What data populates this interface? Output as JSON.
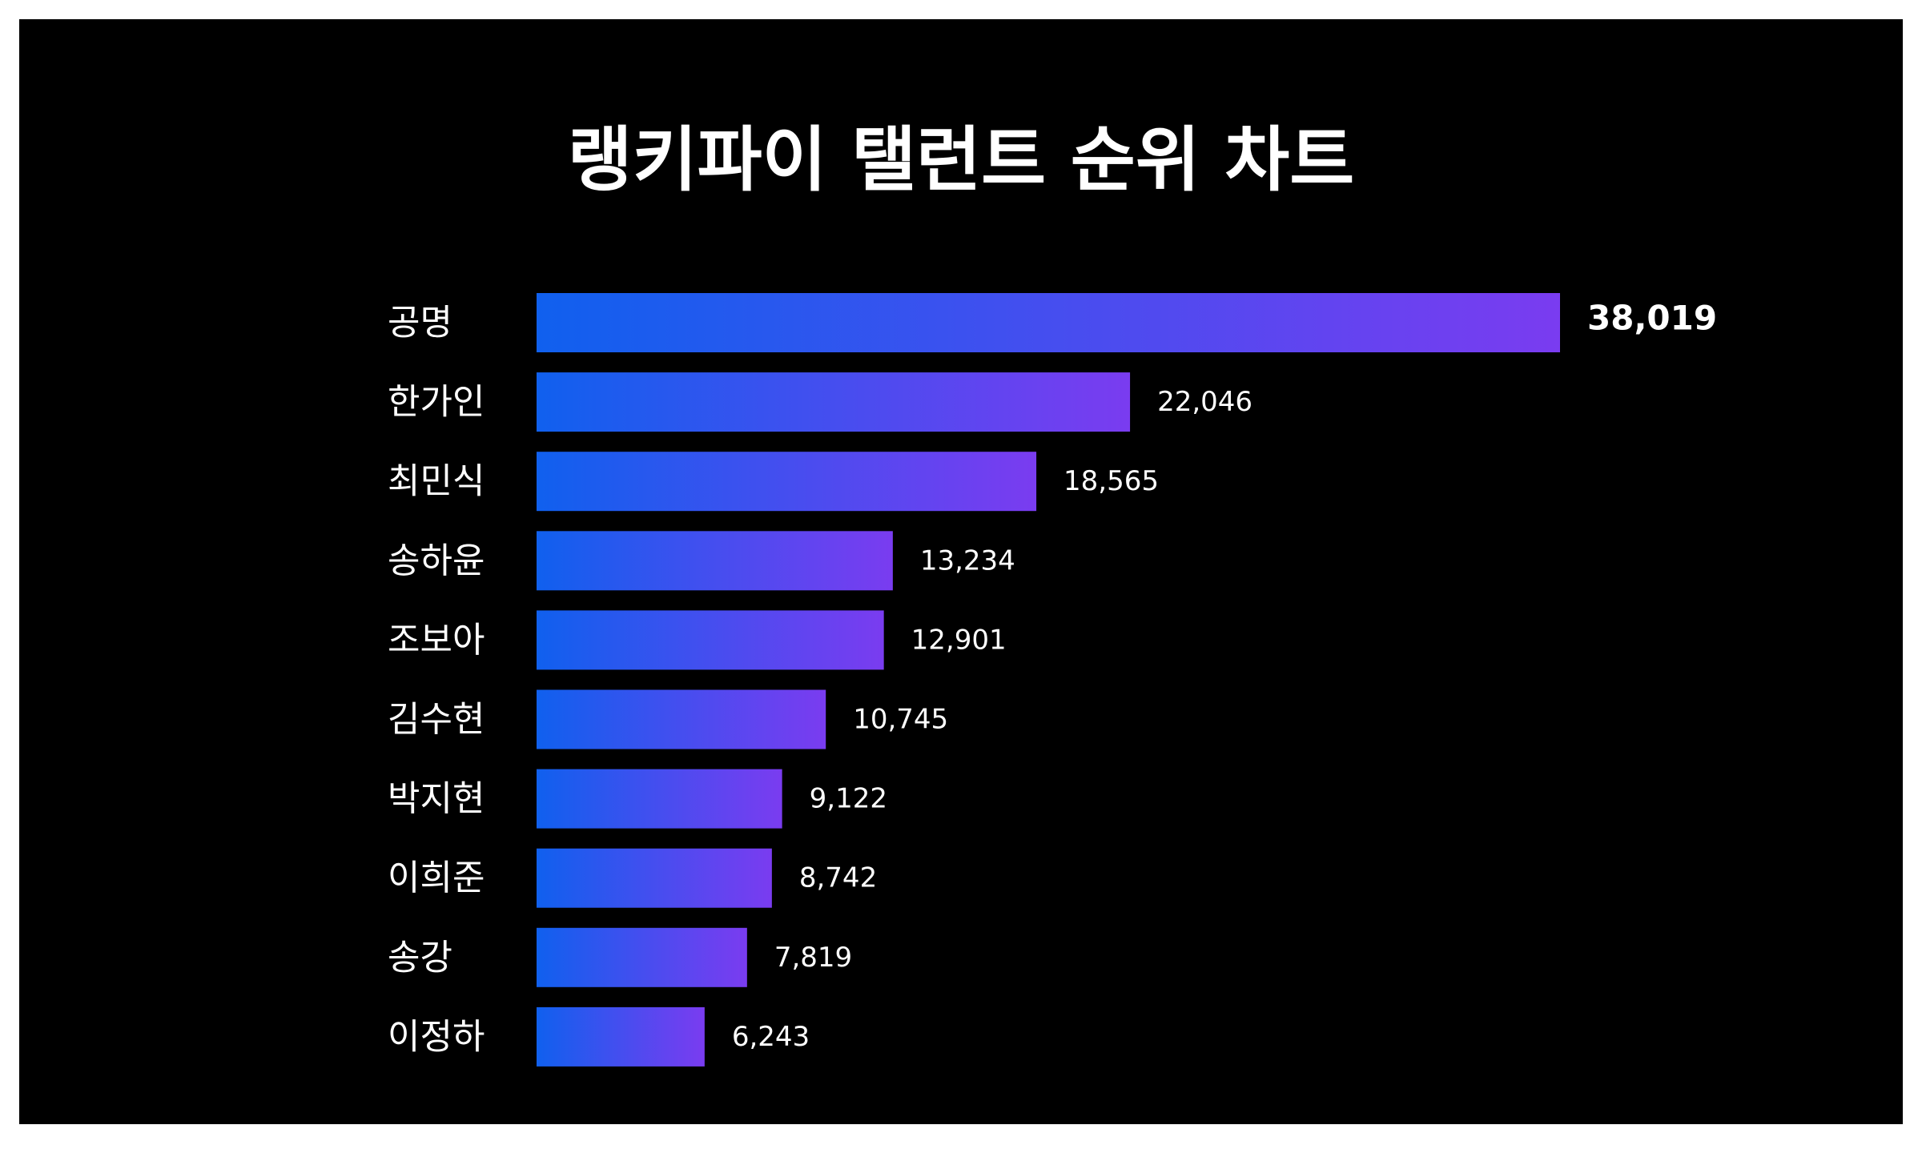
{
  "chart_data": {
    "type": "bar",
    "orientation": "horizontal",
    "title": "랭키파이 탤런트 순위 차트",
    "categories": [
      "공명",
      "한가인",
      "최민식",
      "송하윤",
      "조보아",
      "김수현",
      "박지현",
      "이희준",
      "송강",
      "이정하"
    ],
    "values": [
      38019,
      22046,
      18565,
      13234,
      12901,
      10745,
      9122,
      8742,
      7819,
      6243
    ],
    "value_labels": [
      "38,019",
      "22,046",
      "18,565",
      "13,234",
      "12,901",
      "10,745",
      "9,122",
      "8,742",
      "7,819",
      "6,243"
    ],
    "xlim": [
      0,
      38019
    ],
    "grid": false,
    "legend": "none",
    "colors": {
      "background": "#000000",
      "frame": "#ffffff",
      "bar_gradient_start": "#1060ee",
      "bar_gradient_end": "#7a3cf0",
      "text": "#ffffff"
    }
  }
}
